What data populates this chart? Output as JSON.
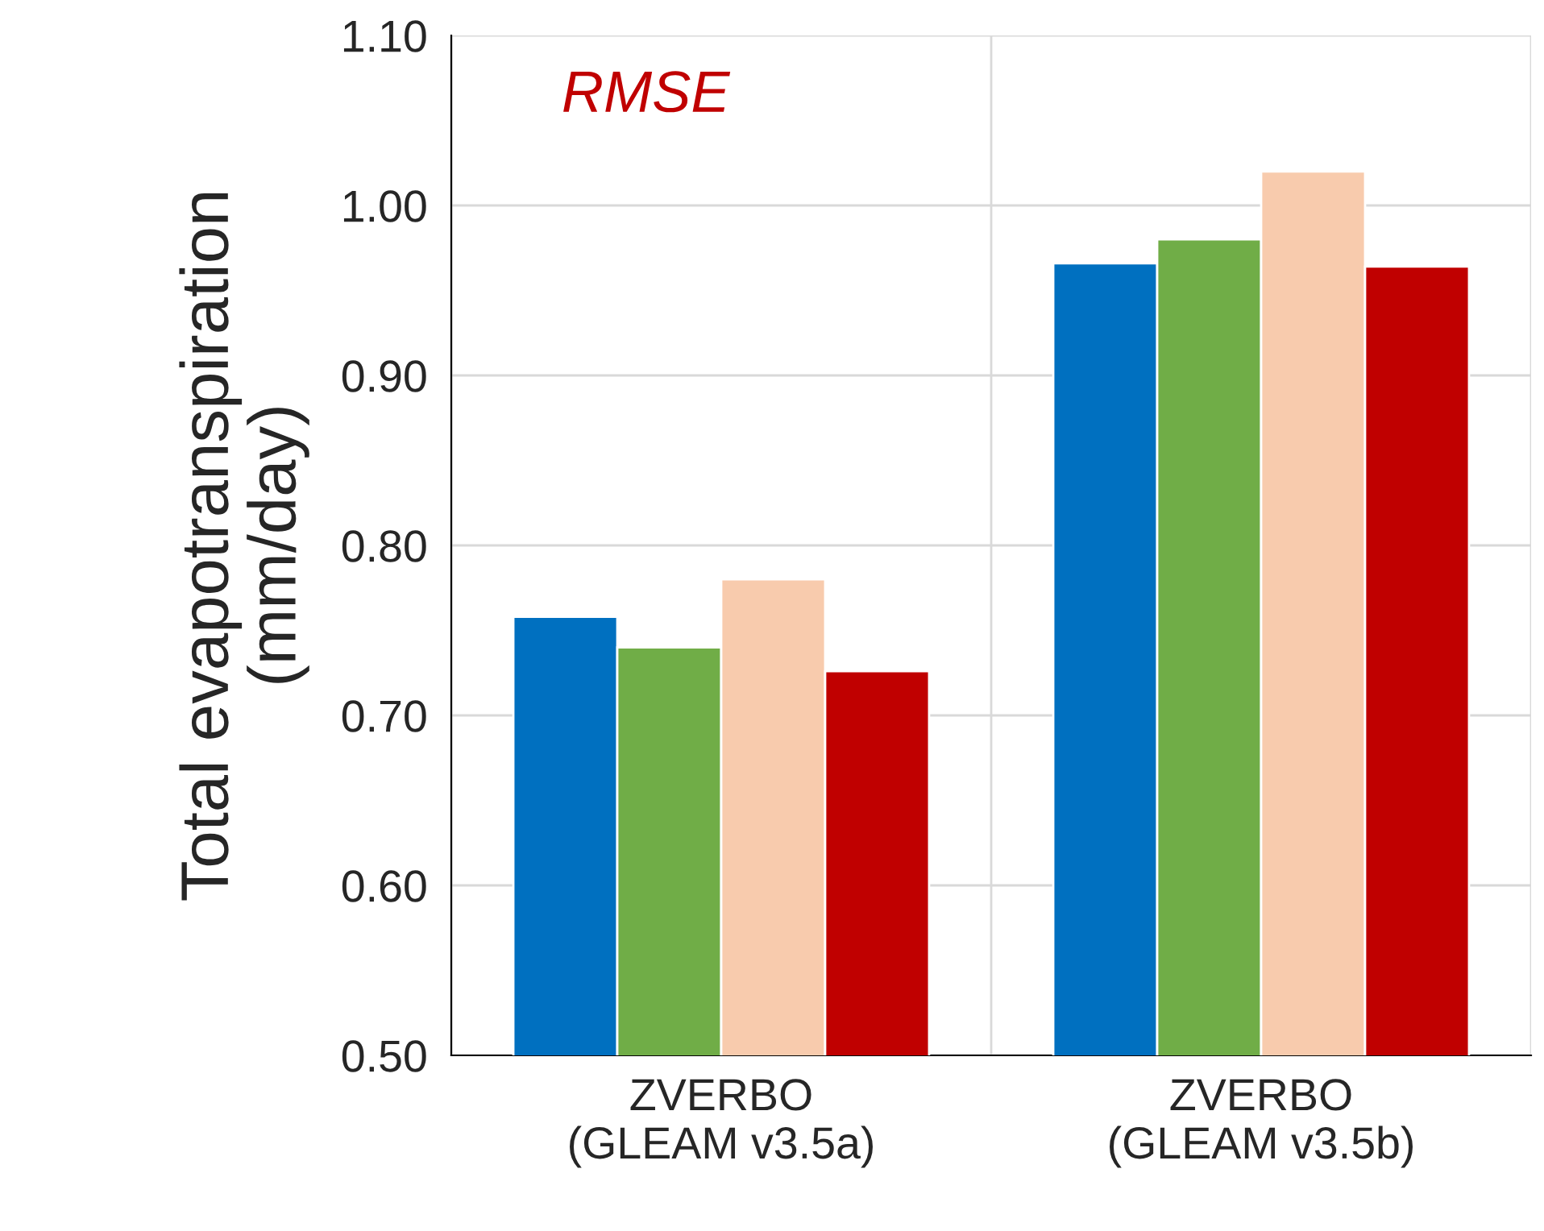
{
  "chart_data": {
    "type": "bar",
    "ylabel": "Total evapotranspiration\n(mm/day)",
    "categories": [
      "ZVERBO\n(GLEAM v3.5a)",
      "ZVERBO\n(GLEAM v3.5b)"
    ],
    "series": [
      {
        "color": "#0070c0",
        "values": [
          0.758,
          0.966
        ]
      },
      {
        "color": "#70ad47",
        "values": [
          0.74,
          0.98
        ]
      },
      {
        "color": "#f8cbad",
        "values": [
          0.78,
          1.02
        ]
      },
      {
        "color": "#c00000",
        "values": [
          0.726,
          0.964
        ]
      }
    ],
    "ylim": [
      0.5,
      1.1
    ],
    "yticks": [
      {
        "value": 0.5,
        "label": "0.50"
      },
      {
        "value": 0.6,
        "label": "0.60"
      },
      {
        "value": 0.7,
        "label": "0.70"
      },
      {
        "value": 0.8,
        "label": "0.80"
      },
      {
        "value": 0.9,
        "label": "0.90"
      },
      {
        "value": 1.0,
        "label": "1.00"
      },
      {
        "value": 1.1,
        "label": "1.10"
      }
    ],
    "grid": true,
    "annotations": [
      "RMSE"
    ]
  }
}
